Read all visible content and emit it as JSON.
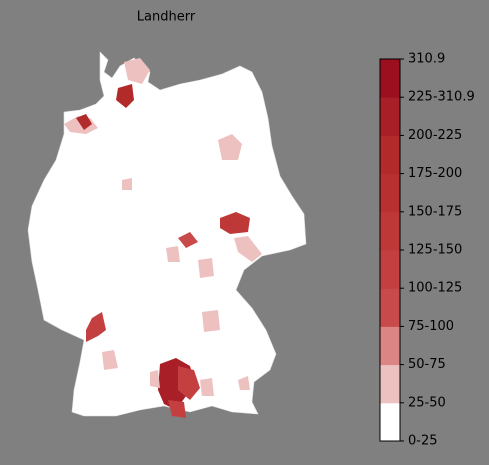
{
  "title": "Landherr",
  "colorbar": {
    "ticks": [
      "0-25",
      "25-50",
      "50-75",
      "75-100",
      "100-125",
      "125-150",
      "150-175",
      "175-200",
      "200-225",
      "225-310.9",
      "310.9"
    ],
    "colors": [
      "#ffffff",
      "#eec1c1",
      "#dc8585",
      "#c94a4a",
      "#c44040",
      "#bf3838",
      "#b93030",
      "#b22a2a",
      "#a91f27",
      "#9b0f1f"
    ]
  }
}
